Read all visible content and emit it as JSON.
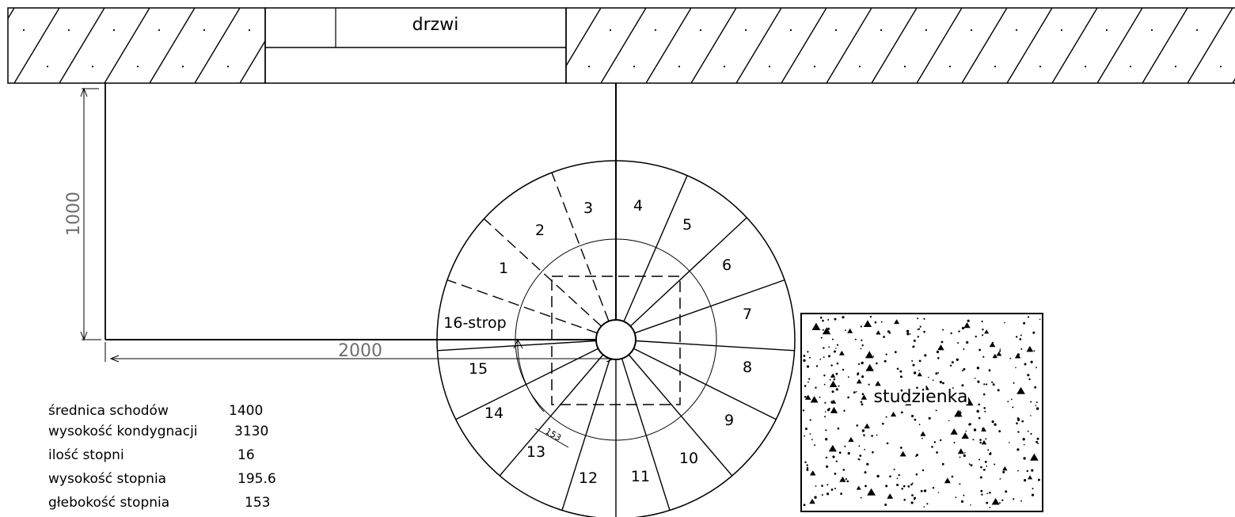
{
  "labels": {
    "door": "drzwi",
    "well": "studzienka",
    "dim_vertical": "1000",
    "dim_horizontal": "2000",
    "tread_depth_dim": "153"
  },
  "steps": [
    "1",
    "2",
    "3",
    "4",
    "5",
    "6",
    "7",
    "8",
    "9",
    "10",
    "11",
    "12",
    "13",
    "14",
    "15",
    "16-strop"
  ],
  "specs": [
    {
      "label": "średnica schodów",
      "value": "1400"
    },
    {
      "label": "wysokość kondygnacji",
      "value": "3130"
    },
    {
      "label": "ilość stopni",
      "value": "16"
    },
    {
      "label": "wysokość stopnia",
      "value": "195.6"
    },
    {
      "label": "głebokość stopnia",
      "value": "153"
    }
  ]
}
